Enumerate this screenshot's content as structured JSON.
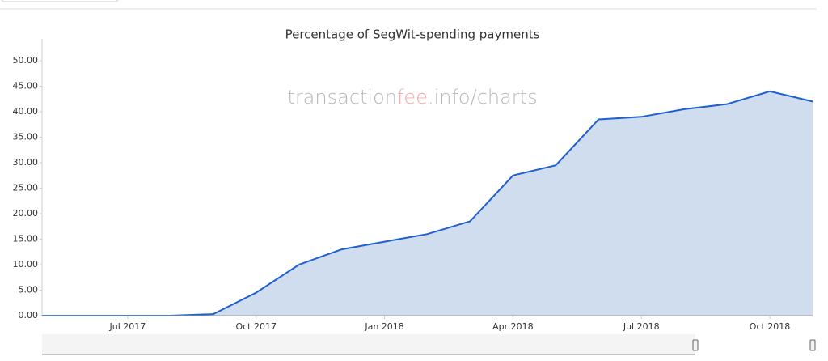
{
  "chart_data": {
    "type": "area",
    "title": "Percentage of SegWit-spending payments",
    "watermark": {
      "prefix": "transaction",
      "accent": "fee",
      "suffix": ".info/charts"
    },
    "x": [
      "2017-05",
      "2017-06",
      "2017-07",
      "2017-08",
      "2017-09",
      "2017-10",
      "2017-11",
      "2017-12",
      "2018-01",
      "2018-02",
      "2018-03",
      "2018-04",
      "2018-05",
      "2018-06",
      "2018-07",
      "2018-08",
      "2018-09",
      "2018-10",
      "2018-11"
    ],
    "series": [
      {
        "color": "#1f5fd0",
        "fill": "#d0ddef",
        "values": [
          0,
          0,
          0,
          0,
          0.3,
          4.5,
          10,
          13,
          14.5,
          16,
          18.5,
          27.5,
          29.5,
          38.5,
          39,
          40.5,
          41.5,
          44,
          42
        ]
      }
    ],
    "xlim": [
      "2017-05",
      "2018-11"
    ],
    "xticks": [
      {
        "value": "2017-07",
        "label": "Jul 2017"
      },
      {
        "value": "2017-10",
        "label": "Oct 2017"
      },
      {
        "value": "2018-01",
        "label": "Jan 2018"
      },
      {
        "value": "2018-04",
        "label": "Apr 2018"
      },
      {
        "value": "2018-07",
        "label": "Jul 2018"
      },
      {
        "value": "2018-10",
        "label": "Oct 2018"
      }
    ],
    "ylim": [
      0,
      54
    ],
    "yticks": [
      {
        "value": 0,
        "label": "0.00"
      },
      {
        "value": 5,
        "label": "5.00"
      },
      {
        "value": 10,
        "label": "10.00"
      },
      {
        "value": 15,
        "label": "15.00"
      },
      {
        "value": 20,
        "label": "20.00"
      },
      {
        "value": 25,
        "label": "25.00"
      },
      {
        "value": 30,
        "label": "30.00"
      },
      {
        "value": 35,
        "label": "35.00"
      },
      {
        "value": 40,
        "label": "40.00"
      },
      {
        "value": 45,
        "label": "45.00"
      },
      {
        "value": 50,
        "label": "50.00"
      }
    ],
    "grid": false
  }
}
